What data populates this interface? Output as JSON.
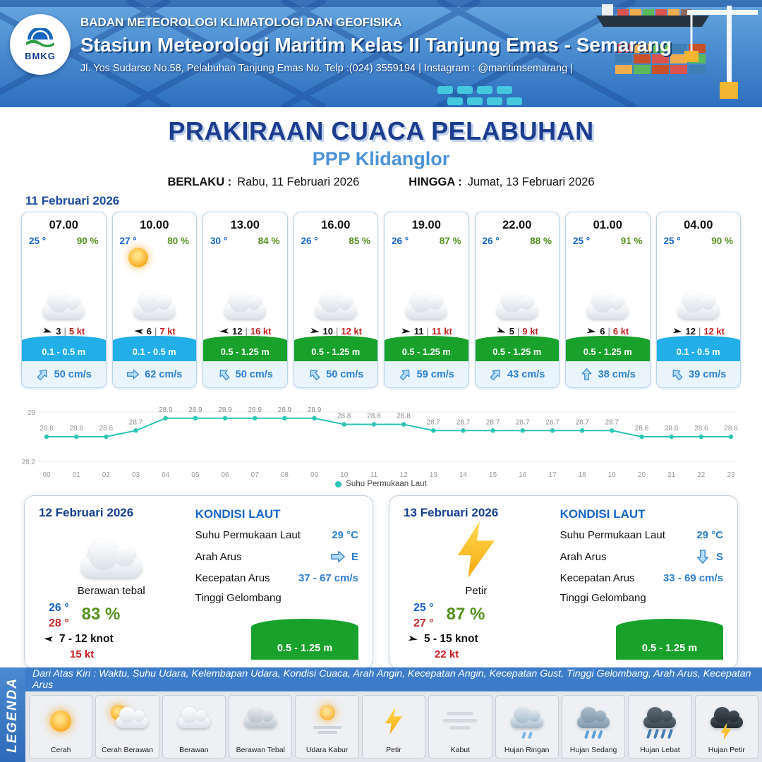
{
  "header": {
    "logo": "BMKG",
    "org": "BADAN METEOROLOGI KLIMATOLOGI DAN GEOFISIKA",
    "station": "Stasiun Meteorologi Maritim Kelas II Tanjung Emas - Semarang",
    "address": "Jl. Yos Sudarso No.58, Pelabuhan Tanjung Emas No. Telp :(024) 3559194 | Instagram : @maritimsemarang |"
  },
  "title": {
    "main": "PRAKIRAAN CUACA PELABUHAN",
    "location": "PPP Klidanglor",
    "valid_from_label": "BERLAKU :",
    "valid_from": "Rabu, 11 Februari 2026",
    "valid_to_label": "HINGGA :",
    "valid_to": "Jumat, 13 Februari 2026"
  },
  "forecast": {
    "date": "11 Februari 2026",
    "sep": "|",
    "cards": [
      {
        "time": "07.00",
        "temp": "25 °",
        "humidity": "90 %",
        "weather": "Berawan",
        "wind_speed": "3",
        "wind_gust": "5 kt",
        "wind_rot": 15,
        "wave": "0.1 - 0.5 m",
        "wave_color": "#22aee6",
        "current": "50 cm/s",
        "current_rot": 40
      },
      {
        "time": "10.00",
        "temp": "27 °",
        "humidity": "80 %",
        "weather": "Cerah Berawan",
        "wind_speed": "6",
        "wind_gust": "7 kt",
        "wind_rot": 185,
        "wave": "0.1 - 0.5 m",
        "wave_color": "#22aee6",
        "current": "62 cm/s",
        "current_rot": 90
      },
      {
        "time": "13.00",
        "temp": "30 °",
        "humidity": "84 %",
        "weather": "Berawan",
        "wind_speed": "12",
        "wind_gust": "16 kt",
        "wind_rot": 175,
        "wave": "0.5 - 1.25 m",
        "wave_color": "#18a12b",
        "current": "50 cm/s",
        "current_rot": -40
      },
      {
        "time": "16.00",
        "temp": "26 °",
        "humidity": "85 %",
        "weather": "Berawan",
        "wind_speed": "10",
        "wind_gust": "12 kt",
        "wind_rot": 10,
        "wave": "0.5 - 1.25 m",
        "wave_color": "#18a12b",
        "current": "50 cm/s",
        "current_rot": -40
      },
      {
        "time": "19.00",
        "temp": "26 °",
        "humidity": "87 %",
        "weather": "Berawan",
        "wind_speed": "11",
        "wind_gust": "11 kt",
        "wind_rot": 5,
        "wave": "0.5 - 1.25 m",
        "wave_color": "#18a12b",
        "current": "59 cm/s",
        "current_rot": 40
      },
      {
        "time": "22.00",
        "temp": "26 °",
        "humidity": "88 %",
        "weather": "Berawan",
        "wind_speed": "5",
        "wind_gust": "9 kt",
        "wind_rot": 20,
        "wave": "0.5 - 1.25 m",
        "wave_color": "#18a12b",
        "current": "43 cm/s",
        "current_rot": 40
      },
      {
        "time": "01.00",
        "temp": "25 °",
        "humidity": "91 %",
        "weather": "Berawan",
        "wind_speed": "6",
        "wind_gust": "6 kt",
        "wind_rot": 10,
        "wave": "0.5 - 1.25 m",
        "wave_color": "#18a12b",
        "current": "38 cm/s",
        "current_rot": 0
      },
      {
        "time": "04.00",
        "temp": "25 °",
        "humidity": "90 %",
        "weather": "Berawan",
        "wind_speed": "12",
        "wind_gust": "12 kt",
        "wind_rot": 10,
        "wave": "0.1 - 0.5 m",
        "wave_color": "#22aee6",
        "current": "39 cm/s",
        "current_rot": -40
      }
    ]
  },
  "chart_data": {
    "type": "line",
    "x": [
      "00",
      "01",
      "02",
      "03",
      "04",
      "05",
      "06",
      "07",
      "08",
      "09",
      "10",
      "11",
      "12",
      "13",
      "14",
      "15",
      "16",
      "17",
      "18",
      "19",
      "20",
      "21",
      "22",
      "23"
    ],
    "series": [
      {
        "name": "Suhu Permukaan Laut",
        "values": [
          28.6,
          28.6,
          28.6,
          28.7,
          28.9,
          28.9,
          28.9,
          28.9,
          28.9,
          28.9,
          28.8,
          28.8,
          28.8,
          28.7,
          28.7,
          28.7,
          28.7,
          28.7,
          28.7,
          28.7,
          28.6,
          28.6,
          28.6,
          28.6
        ]
      }
    ],
    "ylim": [
      28.2,
      29
    ],
    "line_color": "#2ec4b6",
    "legend": "Suhu Permukaan Laut",
    "grid": "top-bottom-only",
    "legend_position": "bottom-center"
  },
  "day_cards": [
    {
      "date": "12 Februari 2026",
      "condition": "Berawan tebal",
      "temp_min": "26 °",
      "temp_max": "28 °",
      "humidity": "83 %",
      "wind": "7 - 12 knot",
      "wind_rot": 185,
      "gust": "15 kt",
      "sea": {
        "heading": "KONDISI LAUT",
        "sst_label": "Suhu Permukaan Laut",
        "sst": "29 °C",
        "current_dir_label": "Arah Arus",
        "current_dir": "E",
        "current_rot": 90,
        "current_speed_label": "Kecepatan Arus",
        "current_speed": "37 - 67 cm/s",
        "wave_label": "Tinggi Gelombang",
        "wave": "0.5 - 1.25 m"
      }
    },
    {
      "date": "13 Februari 2026",
      "condition": "Petir",
      "temp_min": "25 °",
      "temp_max": "27 °",
      "humidity": "87 %",
      "wind": "5 - 15 knot",
      "wind_rot": 10,
      "gust": "22 kt",
      "sea": {
        "heading": "KONDISI LAUT",
        "sst_label": "Suhu Permukaan Laut",
        "sst": "29 °C",
        "current_dir_label": "Arah Arus",
        "current_dir": "S",
        "current_rot": 180,
        "current_speed_label": "Kecepatan Arus",
        "current_speed": "33 - 69 cm/s",
        "wave_label": "Tinggi Gelombang",
        "wave": "0.5 - 1.25 m"
      }
    }
  ],
  "legend": {
    "title": "LEGENDA",
    "note": "Dari Atas Kiri : Waktu, Suhu Udara, Kelembapan Udara, Kondisi Cuaca, Arah Angin, Kecepatan Angin, Kecepatan Gust, Tinggi Gelombang, Arah Arus, Kecepatan Arus",
    "items": [
      {
        "label": "Cerah",
        "icon": "sun"
      },
      {
        "label": "Cerah Berawan",
        "icon": "sun-cloud"
      },
      {
        "label": "Berawan",
        "icon": "cloud"
      },
      {
        "label": "Berawan Tebal",
        "icon": "thick-cloud"
      },
      {
        "label": "Udara Kabur",
        "icon": "hazy-sun"
      },
      {
        "label": "Petir",
        "icon": "lightning"
      },
      {
        "label": "Kabut",
        "icon": "fog"
      },
      {
        "label": "Hujan Ringan",
        "icon": "light-rain"
      },
      {
        "label": "Hujan Sedang",
        "icon": "moderate-rain"
      },
      {
        "label": "Hujan Lebat",
        "icon": "heavy-rain"
      },
      {
        "label": "Hujan Petir",
        "icon": "thunderstorm"
      }
    ]
  }
}
